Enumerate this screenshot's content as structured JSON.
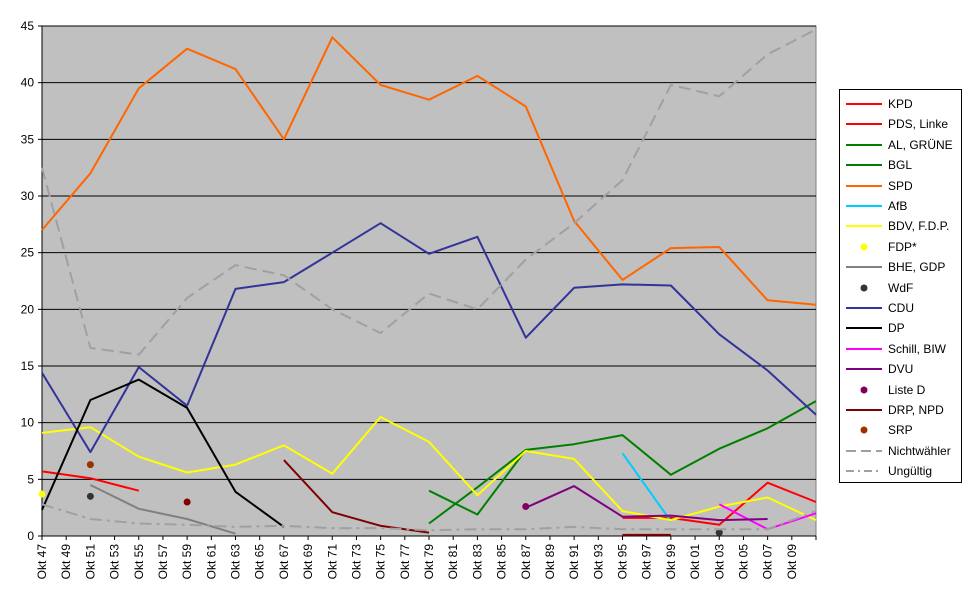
{
  "chart_data": {
    "type": "line",
    "title": "",
    "xlabel": "",
    "ylabel": "",
    "ylim": [
      0,
      45
    ],
    "yticks": [
      0,
      5,
      10,
      15,
      20,
      25,
      30,
      35,
      40,
      45
    ],
    "grid": true,
    "legend_position": "right",
    "x_labels": [
      "Okt 47",
      "Okt 49",
      "Okt 51",
      "Okt 53",
      "Okt 55",
      "Okt 57",
      "Okt 59",
      "Okt 61",
      "Okt 63",
      "Okt 65",
      "Okt 67",
      "Okt 69",
      "Okt 71",
      "Okt 73",
      "Okt 75",
      "Okt 77",
      "Okt 79",
      "Okt 81",
      "Okt 83",
      "Okt 85",
      "Okt 87",
      "Okt 89",
      "Okt 91",
      "Okt 93",
      "Okt 95",
      "Okt 97",
      "Okt 99",
      "Okt 01",
      "Okt 03",
      "Okt 05",
      "Okt 07",
      "Okt 09"
    ],
    "x_range": [
      1947,
      2011
    ],
    "series": [
      {
        "name": "KPD",
        "color": "#ff0000",
        "style": "solid",
        "points": [
          [
            1947,
            5.7
          ],
          [
            1951,
            5.1
          ],
          [
            1955,
            4.0
          ]
        ]
      },
      {
        "name": "PDS, Linke",
        "color": "#ff0000",
        "style": "solid",
        "points": [
          [
            1995,
            1.6
          ],
          [
            1999,
            1.6
          ],
          [
            2003,
            1.0
          ],
          [
            2007,
            4.7
          ],
          [
            2011,
            3.0
          ]
        ]
      },
      {
        "name": "AL, GRÜNE",
        "color": "#008000",
        "style": "solid",
        "points": [
          [
            1979,
            4.0
          ],
          [
            1983,
            1.9
          ],
          [
            1987,
            7.6
          ],
          [
            1991,
            8.1
          ],
          [
            1995,
            8.9
          ],
          [
            1999,
            5.4
          ],
          [
            2003,
            7.7
          ],
          [
            2007,
            9.5
          ],
          [
            2011,
            11.9
          ]
        ]
      },
      {
        "name": "BGL",
        "color": "#008000",
        "style": "solid",
        "points": [
          [
            1979,
            1.1
          ],
          [
            1983,
            4.3
          ],
          [
            1987,
            7.6
          ]
        ]
      },
      {
        "name": "SPD",
        "color": "#ff6600",
        "style": "solid",
        "points": [
          [
            1947,
            27.0
          ],
          [
            1951,
            32.0
          ],
          [
            1955,
            39.5
          ],
          [
            1959,
            43.0
          ],
          [
            1963,
            41.2
          ],
          [
            1967,
            35.0
          ],
          [
            1971,
            44.0
          ],
          [
            1975,
            39.8
          ],
          [
            1979,
            38.5
          ],
          [
            1983,
            40.6
          ],
          [
            1987,
            37.9
          ],
          [
            1991,
            27.8
          ],
          [
            1995,
            22.6
          ],
          [
            1999,
            25.4
          ],
          [
            2003,
            25.5
          ],
          [
            2007,
            20.8
          ],
          [
            2011,
            20.4
          ]
        ]
      },
      {
        "name": "AfB",
        "color": "#00ccff",
        "style": "solid",
        "points": [
          [
            1995,
            7.3
          ],
          [
            1999,
            1.3
          ]
        ]
      },
      {
        "name": "BDV, F.D.P.",
        "color": "#ffff00",
        "style": "solid",
        "points": [
          [
            1947,
            9.1
          ],
          [
            1951,
            9.6
          ],
          [
            1955,
            7.0
          ],
          [
            1959,
            5.6
          ],
          [
            1963,
            6.3
          ],
          [
            1967,
            8.0
          ],
          [
            1971,
            5.5
          ],
          [
            1975,
            10.5
          ],
          [
            1979,
            8.3
          ],
          [
            1983,
            3.6
          ],
          [
            1987,
            7.5
          ],
          [
            1991,
            6.8
          ],
          [
            1995,
            2.2
          ],
          [
            1999,
            1.4
          ],
          [
            2003,
            2.6
          ],
          [
            2007,
            3.4
          ],
          [
            2011,
            1.4
          ]
        ]
      },
      {
        "name": "FDP*",
        "color": "#ffff00",
        "style": "marker",
        "points": [
          [
            1947,
            3.7
          ]
        ]
      },
      {
        "name": "BHE, GDP",
        "color": "#808080",
        "style": "solid",
        "points": [
          [
            1951,
            4.5
          ],
          [
            1955,
            2.4
          ],
          [
            1959,
            1.5
          ],
          [
            1963,
            0.2
          ]
        ]
      },
      {
        "name": "WdF",
        "color": "#333333",
        "style": "marker",
        "points": [
          [
            1951,
            3.5
          ],
          [
            2003,
            0.3
          ]
        ]
      },
      {
        "name": "CDU",
        "color": "#333399",
        "style": "solid",
        "points": [
          [
            1947,
            14.4
          ],
          [
            1951,
            7.4
          ],
          [
            1955,
            14.9
          ],
          [
            1959,
            11.5
          ],
          [
            1963,
            21.8
          ],
          [
            1967,
            22.4
          ],
          [
            1971,
            25.0
          ],
          [
            1975,
            27.6
          ],
          [
            1979,
            24.9
          ],
          [
            1983,
            26.4
          ],
          [
            1987,
            17.5
          ],
          [
            1991,
            21.9
          ],
          [
            1995,
            22.2
          ],
          [
            1999,
            22.1
          ],
          [
            2003,
            17.8
          ],
          [
            2007,
            14.6
          ],
          [
            2011,
            10.7
          ]
        ]
      },
      {
        "name": "DP",
        "color": "#000000",
        "style": "solid",
        "points": [
          [
            1947,
            2.3
          ],
          [
            1951,
            12.0
          ],
          [
            1955,
            13.8
          ],
          [
            1959,
            11.3
          ],
          [
            1963,
            3.9
          ],
          [
            1967,
            0.8
          ]
        ]
      },
      {
        "name": "Schill, BIW",
        "color": "#ff00ff",
        "style": "solid",
        "points": [
          [
            2003,
            2.8
          ],
          [
            2007,
            0.6
          ],
          [
            2011,
            2.0
          ]
        ]
      },
      {
        "name": "DVU",
        "color": "#800080",
        "style": "solid",
        "points": [
          [
            1987,
            2.5
          ],
          [
            1991,
            4.4
          ],
          [
            1995,
            1.7
          ],
          [
            1999,
            1.8
          ],
          [
            2003,
            1.4
          ],
          [
            2007,
            1.5
          ]
        ]
      },
      {
        "name": "Liste D",
        "color": "#800060",
        "style": "marker",
        "points": [
          [
            1987,
            2.6
          ]
        ]
      },
      {
        "name": "DRP, NPD",
        "color": "#800000",
        "style": "solid",
        "points": [
          [
            1967,
            6.7
          ],
          [
            1971,
            2.1
          ],
          [
            1975,
            0.9
          ],
          [
            1979,
            0.3
          ]
        ]
      },
      {
        "name": "DRP, NPD",
        "color": "#800000",
        "style": "solid",
        "points": [
          [
            1995,
            0.1
          ],
          [
            1999,
            0.1
          ]
        ]
      },
      {
        "name": "DRP, NPD",
        "color": "#800000",
        "style": "marker",
        "points": [
          [
            1959,
            3.0
          ]
        ]
      },
      {
        "name": "SRP",
        "color": "#993300",
        "style": "marker",
        "points": [
          [
            1951,
            6.3
          ]
        ]
      },
      {
        "name": "Nichtwähler",
        "color": "#a0a0a0",
        "style": "dash",
        "points": [
          [
            1947,
            32.5
          ],
          [
            1951,
            16.6
          ],
          [
            1955,
            16.0
          ],
          [
            1959,
            21.0
          ],
          [
            1963,
            23.9
          ],
          [
            1967,
            23.0
          ],
          [
            1971,
            20.0
          ],
          [
            1975,
            17.9
          ],
          [
            1979,
            21.4
          ],
          [
            1983,
            20.0
          ],
          [
            1987,
            24.4
          ],
          [
            1991,
            27.6
          ],
          [
            1995,
            31.4
          ],
          [
            1999,
            39.8
          ],
          [
            2003,
            38.8
          ],
          [
            2007,
            42.5
          ],
          [
            2011,
            44.7
          ]
        ]
      },
      {
        "name": "Ungültig",
        "color": "#a0a0a0",
        "style": "dashdot",
        "points": [
          [
            1947,
            2.8
          ],
          [
            1951,
            1.5
          ],
          [
            1955,
            1.1
          ],
          [
            1959,
            1.0
          ],
          [
            1963,
            0.8
          ],
          [
            1967,
            0.9
          ],
          [
            1971,
            0.7
          ],
          [
            1975,
            0.7
          ],
          [
            1979,
            0.5
          ],
          [
            1983,
            0.6
          ],
          [
            1987,
            0.6
          ],
          [
            1991,
            0.8
          ],
          [
            1995,
            0.6
          ],
          [
            1999,
            0.6
          ],
          [
            2003,
            0.6
          ],
          [
            2007,
            0.6
          ],
          [
            2011,
            2.2
          ]
        ]
      }
    ],
    "legend": [
      {
        "label": "KPD",
        "color": "#ff0000",
        "style": "solid"
      },
      {
        "label": "PDS, Linke",
        "color": "#ff0000",
        "style": "solid"
      },
      {
        "label": "AL, GRÜNE",
        "color": "#008000",
        "style": "solid"
      },
      {
        "label": "BGL",
        "color": "#008000",
        "style": "solid"
      },
      {
        "label": "SPD",
        "color": "#ff6600",
        "style": "solid"
      },
      {
        "label": "AfB",
        "color": "#00ccff",
        "style": "solid"
      },
      {
        "label": "BDV, F.D.P.",
        "color": "#ffff00",
        "style": "solid"
      },
      {
        "label": "FDP*",
        "color": "#ffff00",
        "style": "marker"
      },
      {
        "label": "BHE, GDP",
        "color": "#808080",
        "style": "solid"
      },
      {
        "label": "WdF",
        "color": "#333333",
        "style": "marker"
      },
      {
        "label": "CDU",
        "color": "#333399",
        "style": "solid"
      },
      {
        "label": "DP",
        "color": "#000000",
        "style": "solid"
      },
      {
        "label": "Schill, BIW",
        "color": "#ff00ff",
        "style": "solid"
      },
      {
        "label": "DVU",
        "color": "#800080",
        "style": "solid"
      },
      {
        "label": "Liste D",
        "color": "#800060",
        "style": "marker"
      },
      {
        "label": "DRP, NPD",
        "color": "#800000",
        "style": "solid"
      },
      {
        "label": "SRP",
        "color": "#993300",
        "style": "marker"
      },
      {
        "label": "Nichtwähler",
        "color": "#a0a0a0",
        "style": "dash"
      },
      {
        "label": "Ungültig",
        "color": "#a0a0a0",
        "style": "dashdot"
      }
    ],
    "plot_background": "#c0c0c0"
  }
}
